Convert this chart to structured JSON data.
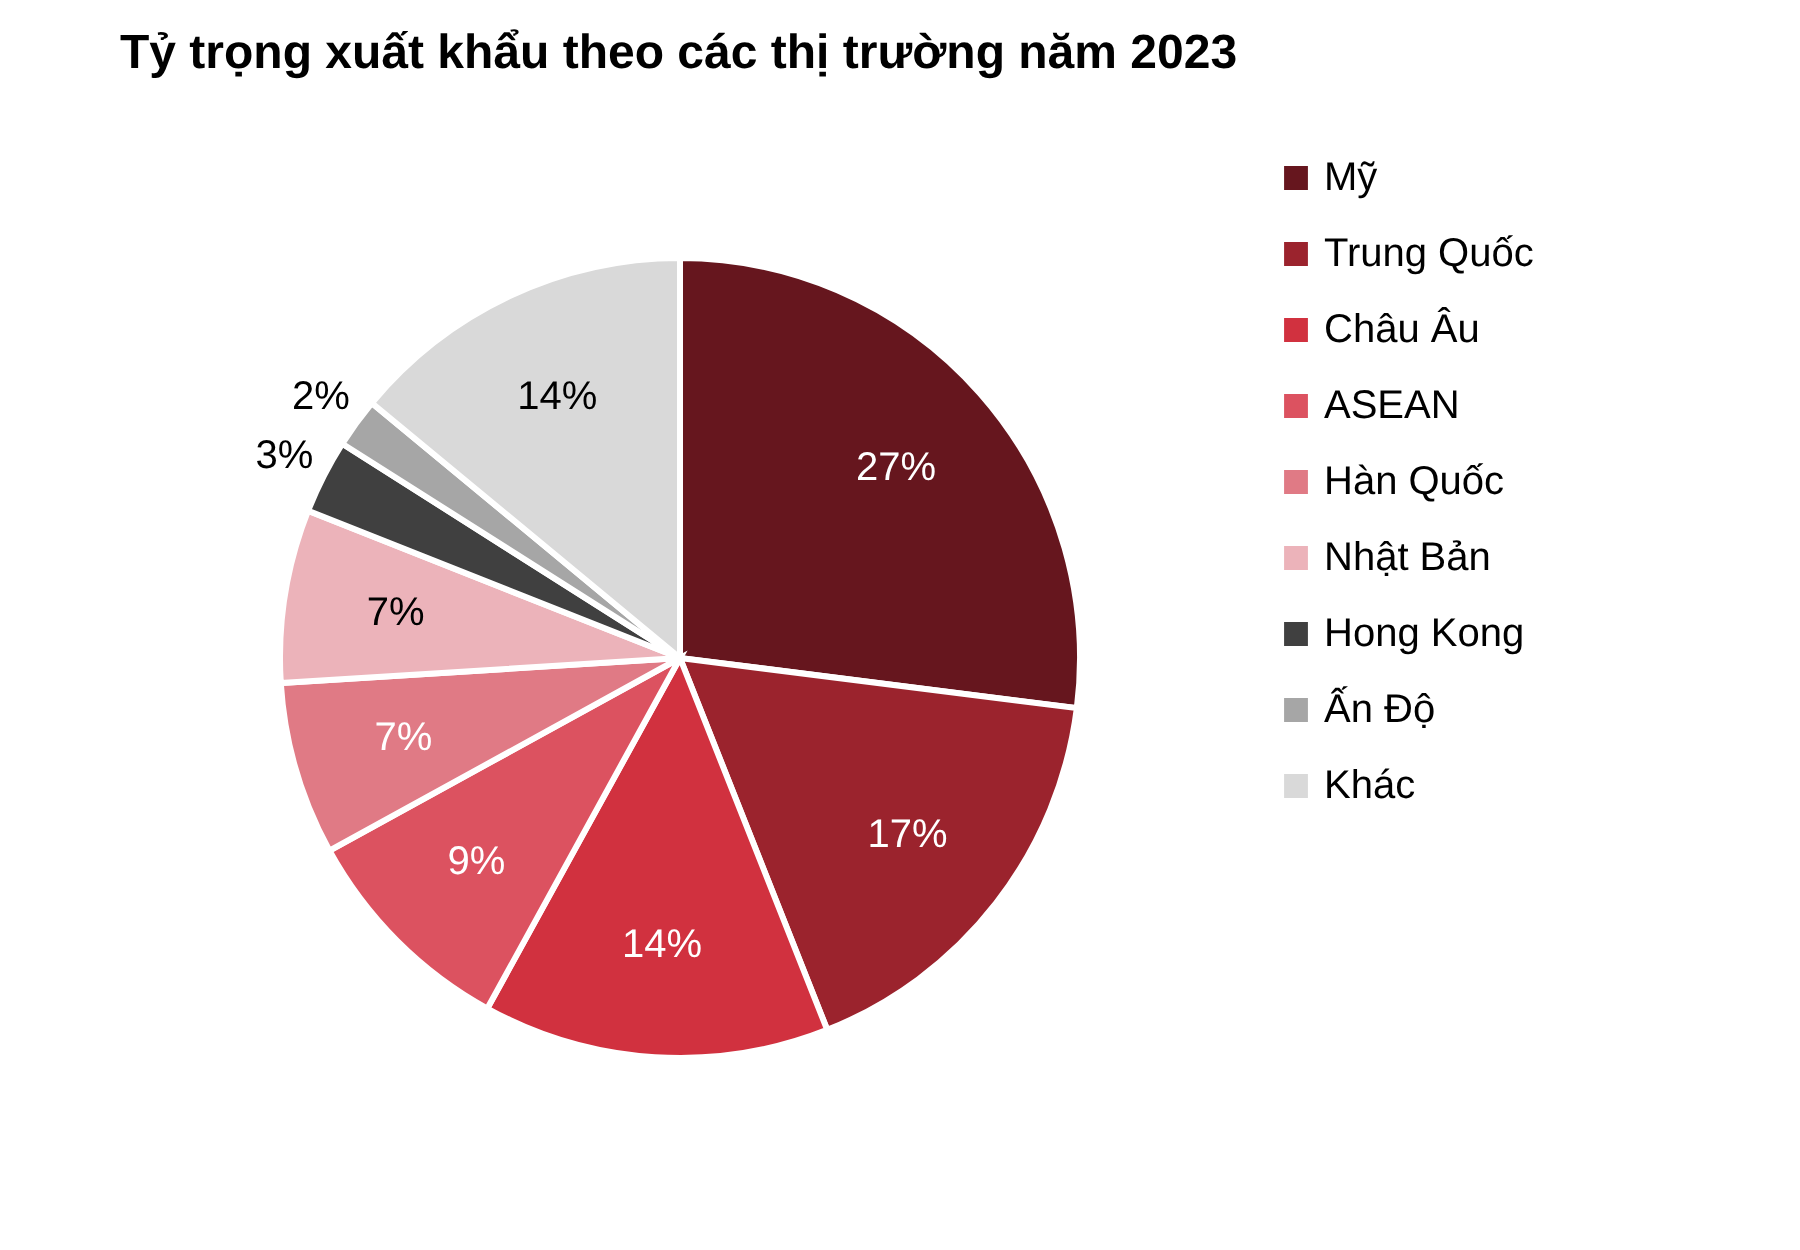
{
  "chart_data": {
    "type": "pie",
    "title": "Tỷ trọng xuất khẩu theo các thị trường năm 2023",
    "categories": [
      "Mỹ",
      "Trung Quốc",
      "Châu Âu",
      "ASEAN",
      "Hàn Quốc",
      "Nhật Bản",
      "Hong Kong",
      "Ấn Độ",
      "Khác"
    ],
    "values": [
      27,
      17,
      14,
      9,
      7,
      7,
      3,
      2,
      14
    ],
    "colors": [
      "#66161e",
      "#9b232d",
      "#d1313f",
      "#dc5260",
      "#e07a85",
      "#ecb3ba",
      "#404040",
      "#a6a6a6",
      "#d9d9d9"
    ],
    "value_labels": [
      "27%",
      "17%",
      "14%",
      "9%",
      "7%",
      "7%",
      "3%",
      "2%",
      "14%"
    ],
    "legend": "right"
  }
}
